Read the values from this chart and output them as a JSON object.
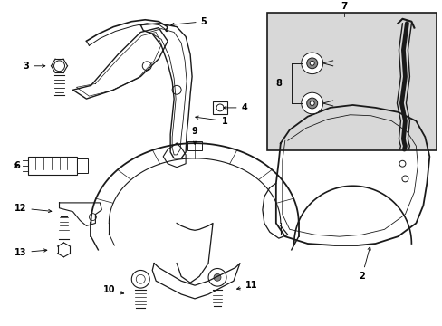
{
  "background_color": "#ffffff",
  "line_color": "#1a1a1a",
  "box_bg": "#e0e0e0",
  "label_font": 7.0,
  "lw": 0.8,
  "fig_w": 4.89,
  "fig_h": 3.6,
  "dpi": 100
}
